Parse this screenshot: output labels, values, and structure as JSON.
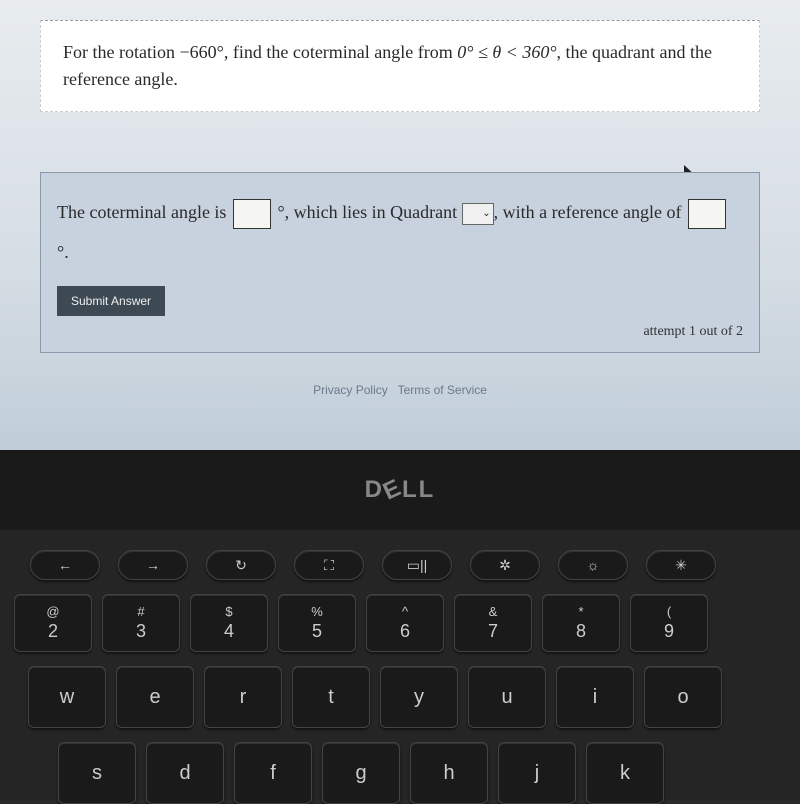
{
  "question": {
    "text_parts": [
      "For the rotation ",
      "−660°",
      ", find the coterminal angle from ",
      "0° ≤ θ < 360°",
      ", the quadrant and the reference angle."
    ]
  },
  "answer": {
    "parts": [
      "The coterminal angle is ",
      "°, which lies in Quadrant ",
      ", with a reference angle of ",
      "°."
    ]
  },
  "dropdown_caret": "⌄",
  "submit_label": "Submit Answer",
  "attempt_text": "attempt 1 out of 2",
  "footer": {
    "privacy": "Privacy Policy",
    "terms": "Terms of Service"
  },
  "laptop": {
    "brand": "DELL"
  },
  "keyboard": {
    "fn_row": [
      "←",
      "→",
      "↻",
      "⛶",
      "▭||",
      "✲",
      "☼",
      "✳"
    ],
    "num_row": [
      {
        "upper": "@",
        "lower": "2"
      },
      {
        "upper": "#",
        "lower": "3"
      },
      {
        "upper": "$",
        "lower": "4"
      },
      {
        "upper": "%",
        "lower": "5"
      },
      {
        "upper": "^",
        "lower": "6"
      },
      {
        "upper": "&",
        "lower": "7"
      },
      {
        "upper": "*",
        "lower": "8"
      },
      {
        "upper": "(",
        "lower": "9"
      }
    ],
    "letter_row1": [
      "w",
      "e",
      "r",
      "t",
      "y",
      "u",
      "i",
      "o"
    ],
    "letter_row2": [
      "s",
      "d",
      "f",
      "g",
      "h",
      "j",
      "k"
    ]
  }
}
